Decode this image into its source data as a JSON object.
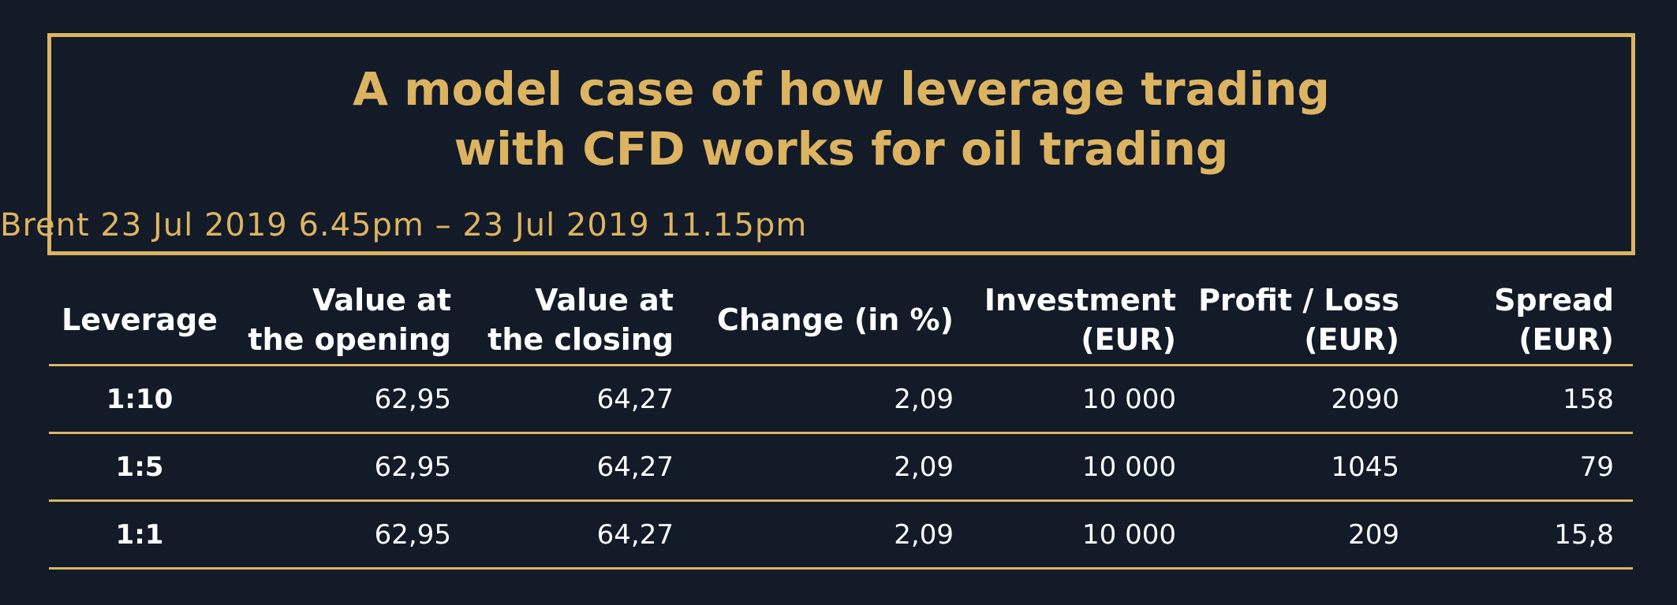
{
  "title": {
    "line1": "A model case of how leverage trading",
    "line2": "with CFD works for oil trading"
  },
  "subtitle": "Brent 23 Jul 2019 6.45pm – 23 Jul 2019 11.15pm",
  "table": {
    "headers": [
      {
        "line1": "Leverage",
        "line2": ""
      },
      {
        "line1": "Value at",
        "line2": "the opening"
      },
      {
        "line1": "Value at",
        "line2": "the closing"
      },
      {
        "line1": "Change (in %)",
        "line2": ""
      },
      {
        "line1": "Investment",
        "line2": "(EUR)"
      },
      {
        "line1": "Profit / Loss",
        "line2": "(EUR)"
      },
      {
        "line1": "Spread",
        "line2": "(EUR)"
      }
    ],
    "rows": [
      [
        "1:10",
        "62,95",
        "64,27",
        "2,09",
        "10 000",
        "2090",
        "158"
      ],
      [
        "1:5",
        "62,95",
        "64,27",
        "2,09",
        "10 000",
        "1045",
        "79"
      ],
      [
        "1:1",
        "62,95",
        "64,27",
        "2,09",
        "10 000",
        "209",
        "15,8"
      ]
    ]
  },
  "colors": {
    "background": "#131a28",
    "accent": "#dcb461",
    "text": "#ffffff"
  }
}
